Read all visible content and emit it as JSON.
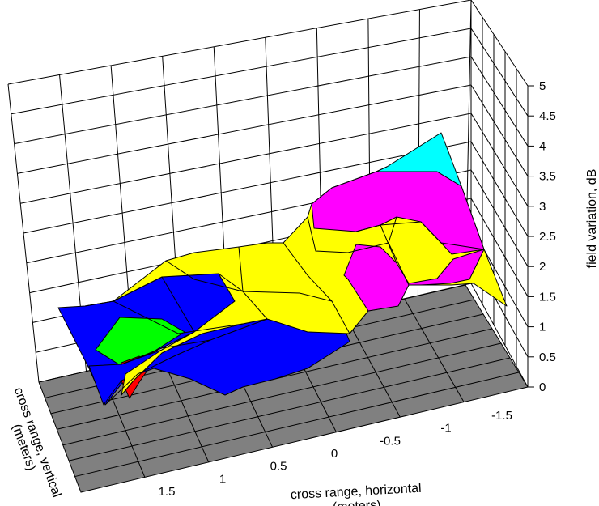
{
  "chart_data": {
    "type": "surface3d",
    "title": "",
    "xlabel": "cross range, horizontal\n(meters)",
    "ylabel": "cross range, vertical\n(meters)",
    "zlabel": "field variation, dB",
    "x_ticks": [
      "1.5",
      "1",
      "0.5",
      "0",
      "-0.5",
      "-1",
      "-1.5"
    ],
    "z_ticks": [
      "0",
      "0.5",
      "1",
      "1.5",
      "2",
      "2.5",
      "3",
      "3.5",
      "4",
      "4.5",
      "5"
    ],
    "zlim": [
      0,
      5
    ],
    "grid": true,
    "floor_color": "#808080",
    "color_levels": [
      {
        "range": [
          0,
          1
        ],
        "color": "#ff0000"
      },
      {
        "range": [
          1,
          2
        ],
        "color": "#00ff00"
      },
      {
        "range": [
          2,
          3
        ],
        "color": "#0000ff"
      },
      {
        "range": [
          3,
          4
        ],
        "color": "#ffff00"
      },
      {
        "range": [
          4,
          5
        ],
        "color": "#ff00ff"
      },
      {
        "range": [
          5,
          6
        ],
        "color": "#00ffff"
      }
    ],
    "surface_regions": [
      {
        "level": "blue",
        "polygon": [
          [
            72,
            380
          ],
          [
            105,
            378
          ],
          [
            140,
            372
          ],
          [
            200,
            342
          ],
          [
            270,
            338
          ],
          [
            290,
            372
          ],
          [
            240,
            410
          ],
          [
            175,
            442
          ],
          [
            130,
            500
          ],
          [
            110,
            455
          ]
        ]
      },
      {
        "level": "green",
        "polygon": [
          [
            118,
            432
          ],
          [
            148,
            392
          ],
          [
            200,
            394
          ],
          [
            228,
            410
          ],
          [
            190,
            434
          ],
          [
            150,
            452
          ]
        ]
      },
      {
        "level": "red",
        "polygon": [
          [
            150,
            448
          ],
          [
            172,
            440
          ],
          [
            186,
            452
          ],
          [
            172,
            472
          ],
          [
            160,
            492
          ],
          [
            148,
            466
          ]
        ]
      },
      {
        "level": "blue",
        "polygon": [
          [
            110,
            452
          ],
          [
            150,
            450
          ],
          [
            200,
            432
          ],
          [
            250,
            412
          ],
          [
            300,
            400
          ],
          [
            330,
            394
          ],
          [
            380,
            405
          ],
          [
            428,
            412
          ],
          [
            432,
            422
          ],
          [
            410,
            436
          ],
          [
            380,
            455
          ],
          [
            340,
            468
          ],
          [
            300,
            478
          ],
          [
            278,
            488
          ],
          [
            235,
            468
          ],
          [
            190,
            455
          ],
          [
            150,
            470
          ],
          [
            128,
            500
          ]
        ]
      },
      {
        "level": "yellow",
        "polygon": [
          [
            140,
            372
          ],
          [
            205,
            322
          ],
          [
            240,
            312
          ],
          [
            295,
            305
          ],
          [
            330,
            300
          ],
          [
            350,
            300
          ],
          [
            380,
            268
          ],
          [
            385,
            252
          ],
          [
            410,
            232
          ],
          [
            465,
            212
          ],
          [
            478,
            206
          ],
          [
            570,
            230
          ],
          [
            598,
            308
          ],
          [
            626,
            378
          ],
          [
            585,
            350
          ],
          [
            558,
            352
          ],
          [
            505,
            352
          ],
          [
            490,
            378
          ],
          [
            455,
            384
          ],
          [
            432,
            412
          ],
          [
            380,
            410
          ],
          [
            330,
            394
          ],
          [
            300,
            400
          ],
          [
            250,
            412
          ],
          [
            200,
            436
          ],
          [
            165,
            470
          ],
          [
            150,
            488
          ],
          [
            155,
            462
          ],
          [
            200,
            432
          ],
          [
            240,
            410
          ],
          [
            290,
            372
          ],
          [
            270,
            338
          ],
          [
            200,
            342
          ]
        ]
      },
      {
        "level": "magenta",
        "polygon": [
          [
            385,
            252
          ],
          [
            410,
            232
          ],
          [
            465,
            212
          ],
          [
            540,
            212
          ],
          [
            570,
            230
          ],
          [
            598,
            308
          ],
          [
            558,
            314
          ],
          [
            545,
            300
          ],
          [
            520,
            274
          ],
          [
            490,
            268
          ],
          [
            470,
            278
          ],
          [
            440,
            286
          ],
          [
            388,
            282
          ]
        ]
      },
      {
        "level": "magenta",
        "polygon": [
          [
            425,
            340
          ],
          [
            440,
            302
          ],
          [
            470,
            305
          ],
          [
            490,
            325
          ],
          [
            505,
            350
          ],
          [
            540,
            344
          ],
          [
            560,
            320
          ],
          [
            598,
            308
          ],
          [
            580,
            345
          ],
          [
            556,
            350
          ],
          [
            520,
            352
          ],
          [
            505,
            352
          ],
          [
            492,
            378
          ],
          [
            455,
            384
          ],
          [
            430,
            345
          ]
        ]
      },
      {
        "level": "cyan",
        "polygon": [
          [
            465,
            212
          ],
          [
            478,
            206
          ],
          [
            545,
            164
          ],
          [
            555,
            190
          ],
          [
            570,
            230
          ],
          [
            540,
            212
          ]
        ]
      }
    ]
  }
}
